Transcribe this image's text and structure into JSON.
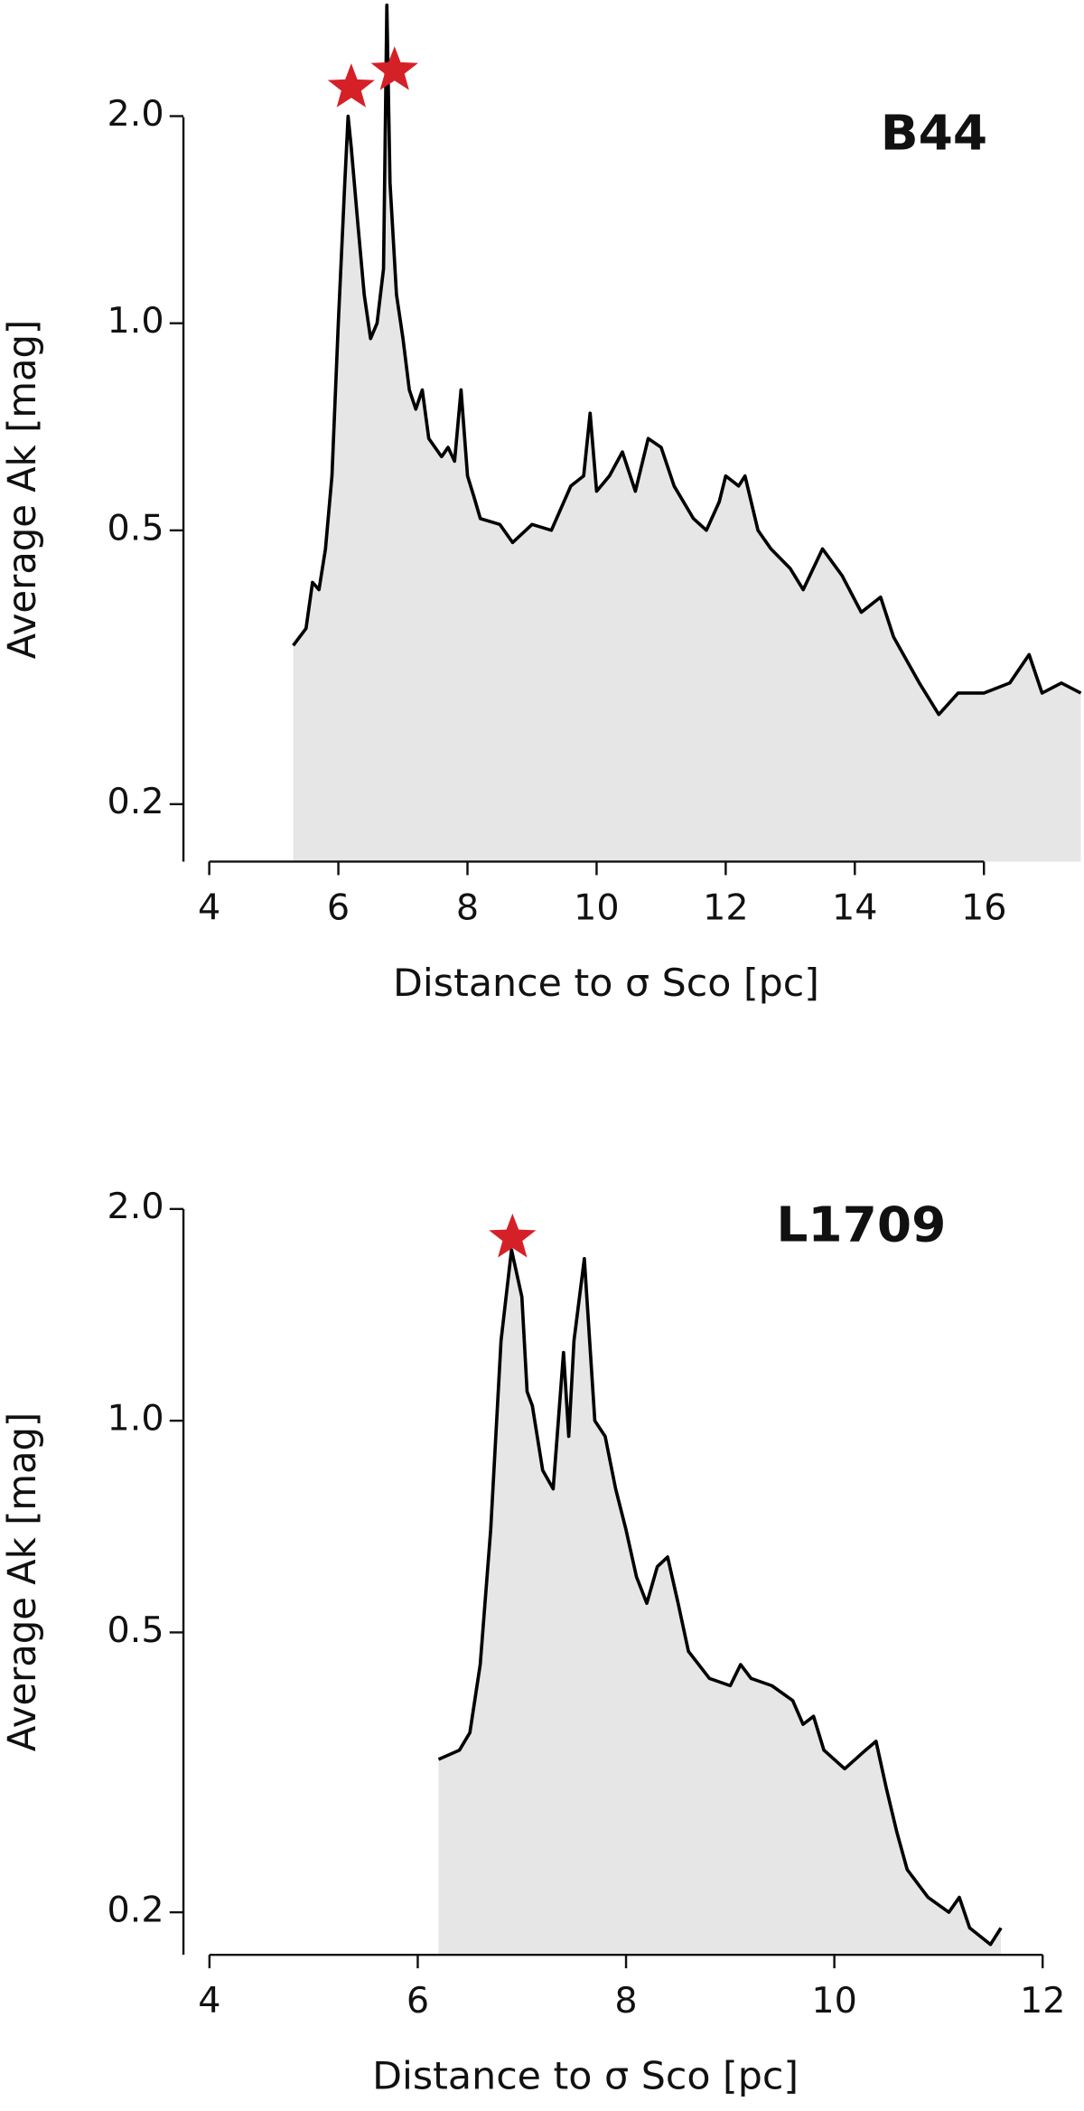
{
  "chart_data": [
    {
      "type": "area",
      "title": "B44",
      "xlabel": "Distance to σ Sco [pc]",
      "ylabel": "Average Ak [mag]",
      "log_y": true,
      "color": "#000000",
      "fill": "#e6e6e6",
      "xlim": [
        3.6,
        17.55
      ],
      "ylim": [
        0.165,
        2.95
      ],
      "xticks": [
        4,
        6,
        8,
        10,
        12,
        14,
        16
      ],
      "yticks": [
        {
          "value": 2,
          "label": "2.0"
        },
        {
          "value": 1,
          "label": "1.0"
        },
        0.5,
        0.2
      ],
      "x": [
        5.3,
        5.5,
        5.6,
        5.7,
        5.8,
        5.9,
        6.0,
        6.1,
        6.15,
        6.2,
        6.3,
        6.4,
        6.5,
        6.6,
        6.7,
        6.75,
        6.8,
        6.9,
        7.0,
        7.1,
        7.2,
        7.3,
        7.4,
        7.6,
        7.7,
        7.8,
        7.9,
        8.0,
        8.1,
        8.2,
        8.5,
        8.7,
        9.0,
        9.3,
        9.6,
        9.8,
        9.9,
        10.0,
        10.2,
        10.4,
        10.6,
        10.8,
        11.0,
        11.2,
        11.5,
        11.7,
        11.9,
        12.0,
        12.2,
        12.3,
        12.5,
        12.7,
        13.0,
        13.2,
        13.5,
        13.8,
        14.1,
        14.4,
        14.6,
        15.0,
        15.3,
        15.6,
        16.0,
        16.4,
        16.7,
        16.9,
        17.2,
        17.5
      ],
      "values": [
        0.34,
        0.36,
        0.42,
        0.41,
        0.47,
        0.6,
        1.0,
        1.6,
        2.0,
        1.8,
        1.4,
        1.1,
        0.95,
        1.0,
        1.2,
        2.9,
        1.6,
        1.1,
        0.95,
        0.8,
        0.75,
        0.8,
        0.68,
        0.64,
        0.66,
        0.63,
        0.8,
        0.6,
        0.56,
        0.52,
        0.51,
        0.48,
        0.51,
        0.5,
        0.58,
        0.6,
        0.74,
        0.57,
        0.6,
        0.65,
        0.57,
        0.68,
        0.66,
        0.58,
        0.52,
        0.5,
        0.55,
        0.6,
        0.58,
        0.6,
        0.5,
        0.47,
        0.44,
        0.41,
        0.47,
        0.43,
        0.38,
        0.4,
        0.35,
        0.3,
        0.27,
        0.29,
        0.29,
        0.3,
        0.33,
        0.29,
        0.3,
        0.29
      ],
      "stars": {
        "x": [
          6.2,
          6.87
        ],
        "values": [
          2.2,
          2.33
        ],
        "color": "#d62027"
      }
    },
    {
      "type": "area",
      "title": "L1709",
      "xlabel": "Distance to σ Sco [pc]",
      "ylabel": "Average Ak [mag]",
      "log_y": true,
      "color": "#000000",
      "fill": "#e6e6e6",
      "xlim": [
        3.75,
        12
      ],
      "ylim": [
        0.174,
        2.0
      ],
      "xticks": [
        4,
        6,
        8,
        10,
        12
      ],
      "yticks": [
        {
          "value": 2,
          "label": "2.0"
        },
        {
          "value": 1,
          "label": "1.0"
        },
        0.5,
        0.2
      ],
      "x": [
        6.2,
        6.4,
        6.5,
        6.6,
        6.7,
        6.8,
        6.9,
        7.0,
        7.05,
        7.1,
        7.2,
        7.3,
        7.4,
        7.45,
        7.5,
        7.6,
        7.7,
        7.8,
        7.9,
        8.0,
        8.1,
        8.2,
        8.3,
        8.4,
        8.5,
        8.6,
        8.8,
        9.0,
        9.1,
        9.2,
        9.4,
        9.6,
        9.7,
        9.8,
        9.9,
        10.1,
        10.3,
        10.4,
        10.5,
        10.6,
        10.7,
        10.9,
        11.1,
        11.2,
        11.3,
        11.5,
        11.6
      ],
      "values": [
        0.33,
        0.34,
        0.36,
        0.45,
        0.7,
        1.3,
        1.75,
        1.5,
        1.1,
        1.05,
        0.85,
        0.8,
        1.25,
        0.95,
        1.3,
        1.7,
        1.0,
        0.95,
        0.8,
        0.7,
        0.6,
        0.55,
        0.62,
        0.64,
        0.55,
        0.47,
        0.43,
        0.42,
        0.45,
        0.43,
        0.42,
        0.4,
        0.37,
        0.38,
        0.34,
        0.32,
        0.34,
        0.35,
        0.3,
        0.26,
        0.23,
        0.21,
        0.2,
        0.21,
        0.19,
        0.18,
        0.19
      ],
      "stars": {
        "x": [
          6.91
        ],
        "values": [
          1.82
        ],
        "color": "#d62027"
      }
    }
  ]
}
